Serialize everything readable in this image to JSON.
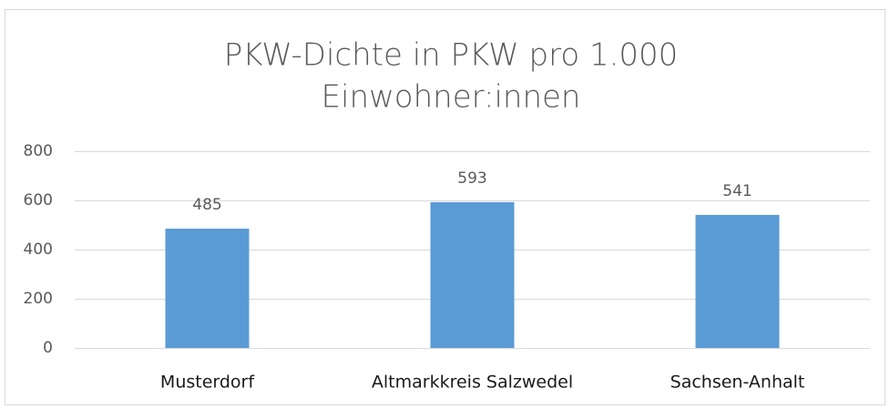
{
  "chart_data": {
    "type": "bar",
    "title": [
      "PKW-Dichte in PKW pro 1.000",
      "Einwohner:innen"
    ],
    "categories": [
      "Musterdorf",
      "Altmarkkreis Salzwedel",
      "Sachsen-Anhalt"
    ],
    "values": [
      485,
      593,
      541
    ],
    "color": "#5b9bd5",
    "ylim": [
      0,
      800
    ],
    "yticks": [
      0,
      200,
      400,
      600,
      800
    ],
    "grid": true,
    "data_labels": true
  }
}
